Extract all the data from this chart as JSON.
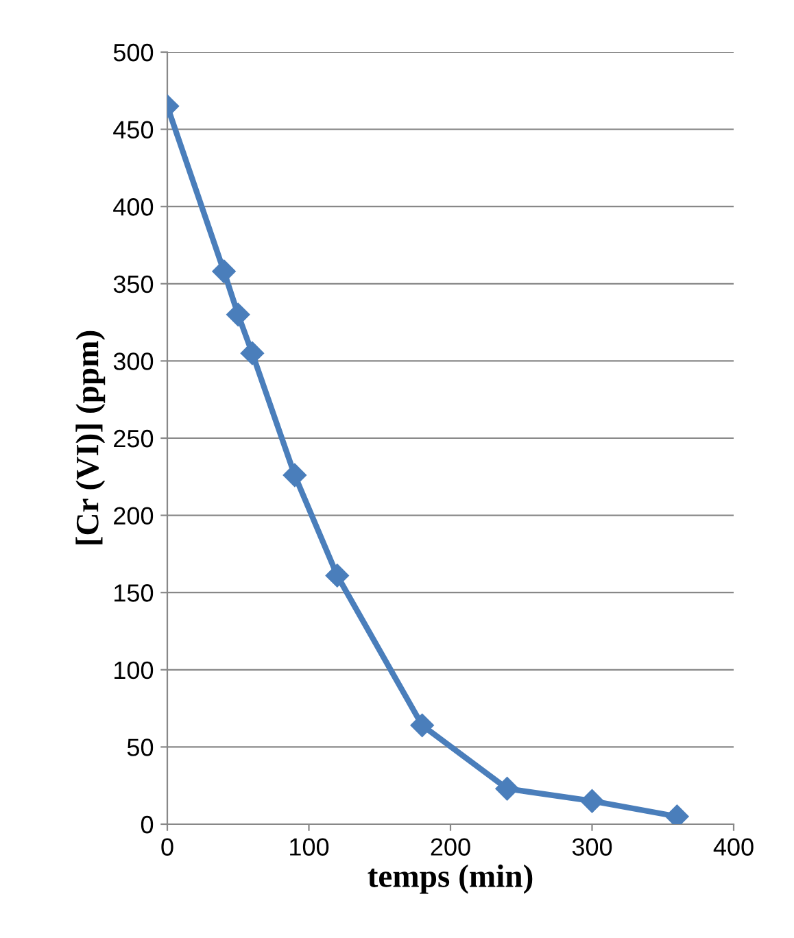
{
  "chart_data": {
    "type": "line",
    "xlabel": "temps (min)",
    "ylabel": "[Cr (VI)] (ppm)",
    "x": [
      0,
      40,
      50,
      60,
      90,
      120,
      180,
      240,
      300,
      360
    ],
    "series": [
      {
        "color": "#4a7ebb",
        "values": [
          465,
          358,
          330,
          305,
          226,
          161,
          64,
          23,
          15,
          5
        ]
      }
    ],
    "xlim": [
      0,
      400
    ],
    "xticks": [
      0,
      100,
      200,
      300,
      400
    ],
    "ylim": [
      0,
      500
    ],
    "yticks": [
      0,
      50,
      100,
      150,
      200,
      250,
      300,
      350,
      400,
      450,
      500
    ],
    "grid": "y",
    "marker": "diamond",
    "line_style": "solid"
  }
}
